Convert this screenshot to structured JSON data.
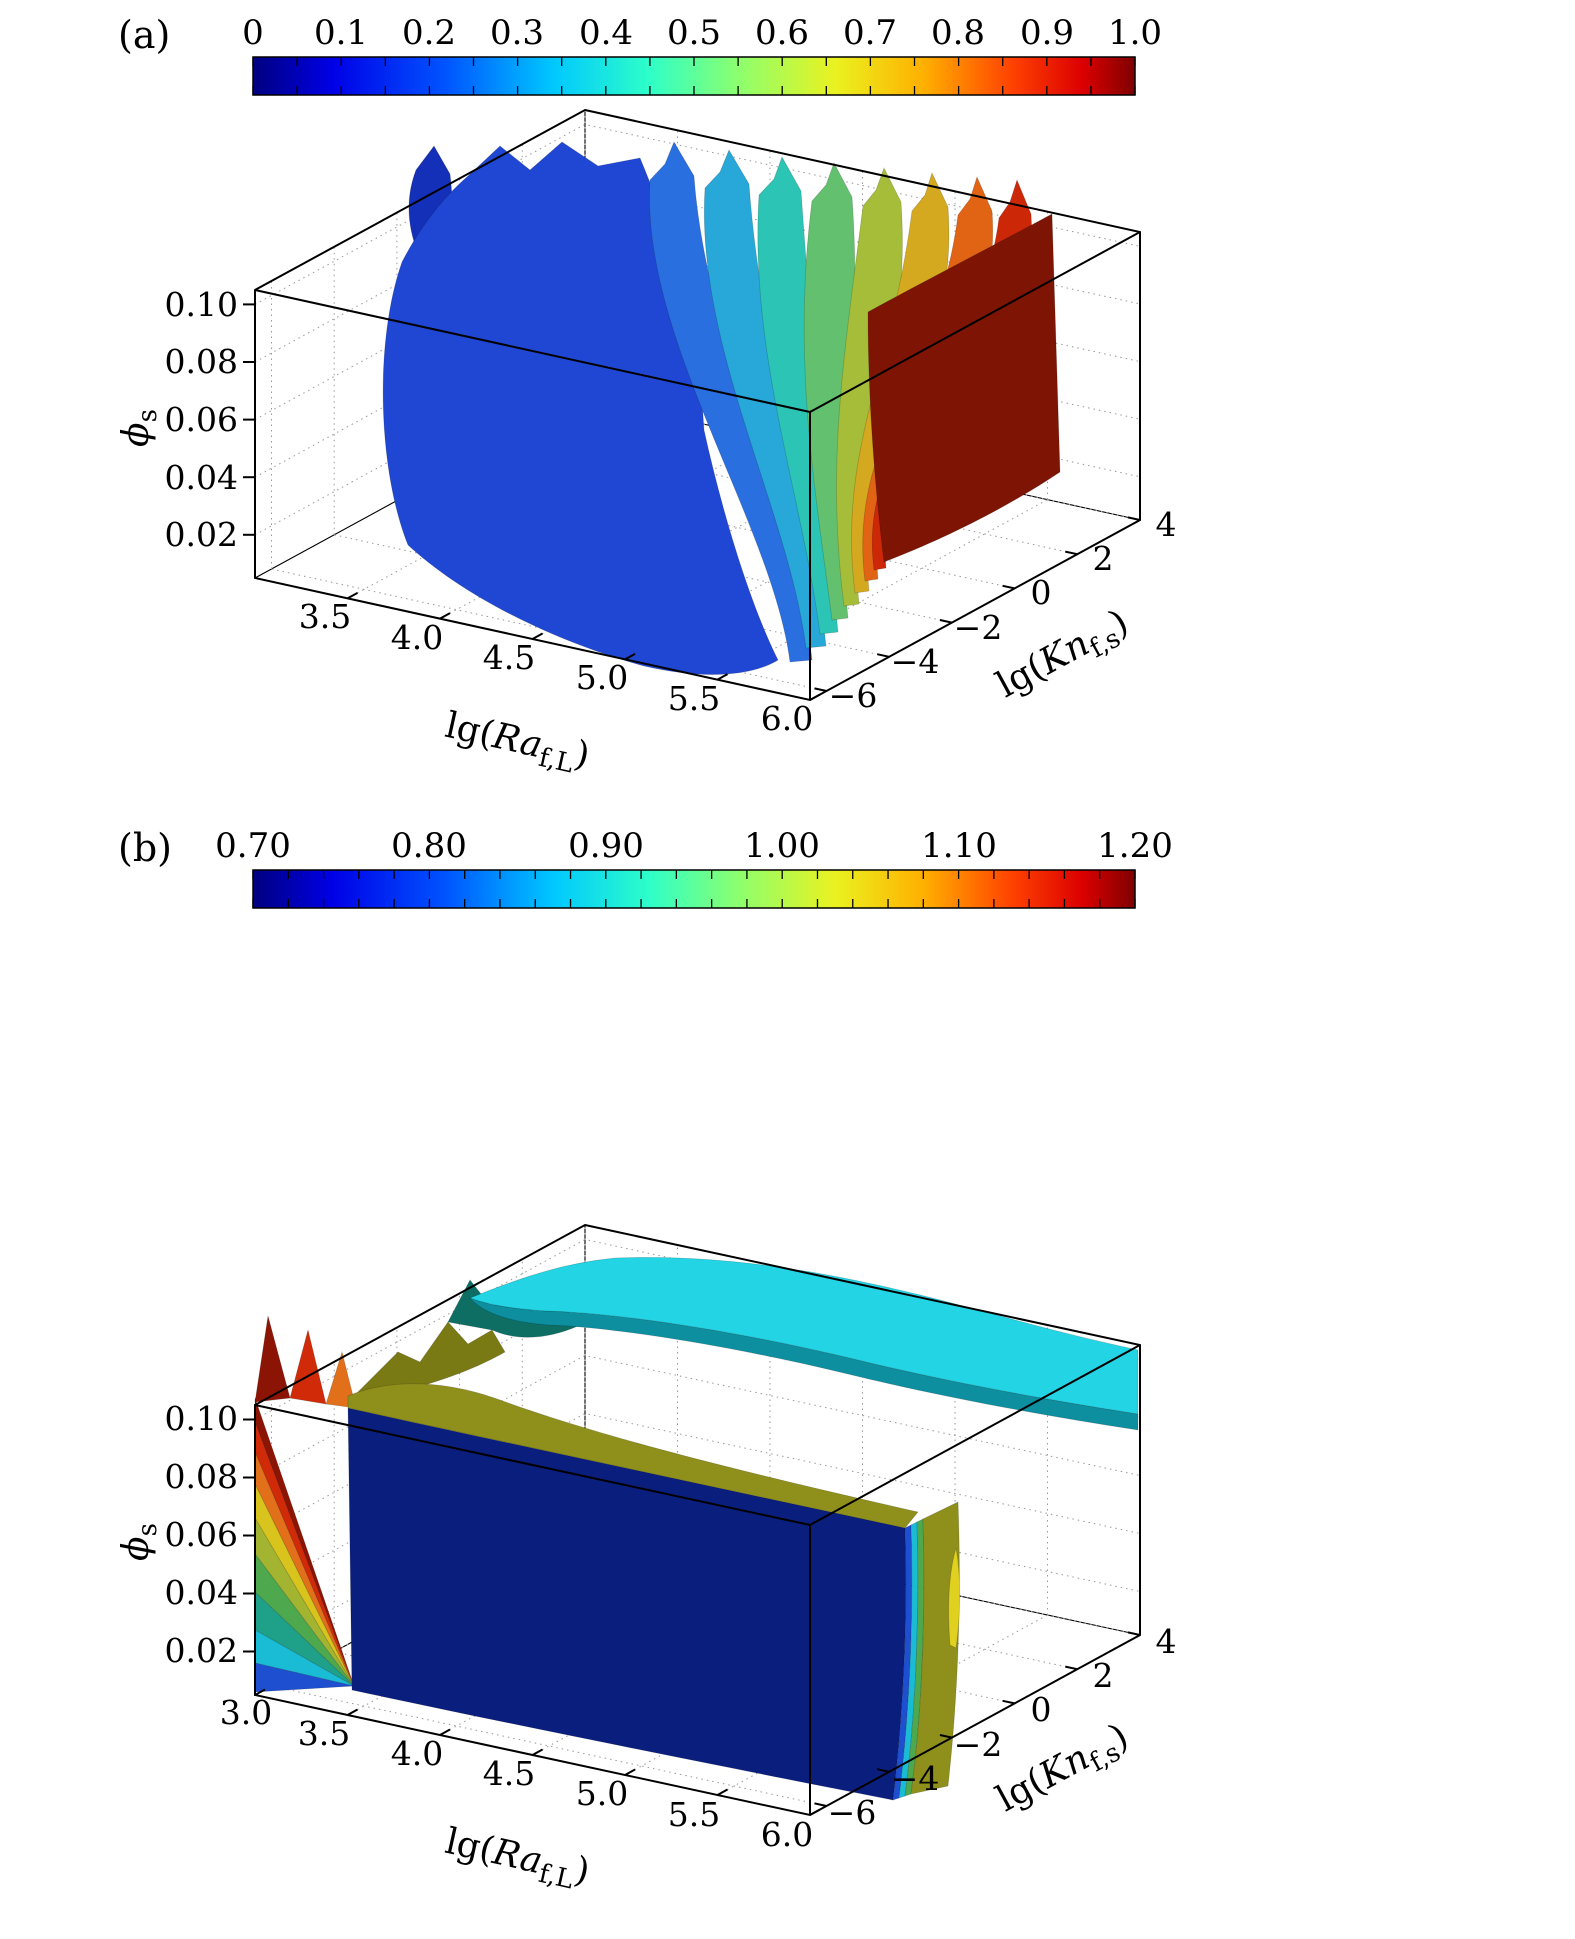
{
  "figure": {
    "panels": [
      {
        "tag": "(a)",
        "colorbar": {
          "tick_labels": [
            "0",
            "0.1",
            "0.2",
            "0.3",
            "0.4",
            "0.5",
            "0.6",
            "0.7",
            "0.8",
            "0.9",
            "1.0"
          ]
        },
        "y_axis": {
          "sym": "ϕ",
          "sub": "s",
          "ticks": [
            "0.10",
            "0.08",
            "0.06",
            "0.04",
            "0.02"
          ]
        },
        "x_axis": {
          "pre": "lg(",
          "sym": "Ra",
          "sub": "f,L",
          "post": ")",
          "ticks": [
            "3.5",
            "4.0",
            "4.5",
            "5.0",
            "5.5",
            "6.0"
          ]
        },
        "z_axis": {
          "pre": "lg(",
          "sym": "Kn",
          "sub": "f,s",
          "post": ")",
          "ticks": [
            "−6",
            "−4",
            "−2",
            "0",
            "2",
            "4"
          ]
        }
      },
      {
        "tag": "(b)",
        "colorbar": {
          "tick_labels": [
            "0.70",
            "0.80",
            "0.90",
            "1.00",
            "1.10",
            "1.20"
          ]
        },
        "y_axis": {
          "sym": "ϕ",
          "sub": "s",
          "ticks": [
            "0.10",
            "0.08",
            "0.06",
            "0.04",
            "0.02"
          ]
        },
        "x_axis": {
          "pre": "lg(",
          "sym": "Ra",
          "sub": "f,L",
          "post": ")",
          "ticks": [
            "3.0",
            "3.5",
            "4.0",
            "4.5",
            "5.0",
            "5.5",
            "6.0"
          ]
        },
        "z_axis": {
          "pre": "lg(",
          "sym": "Kn",
          "sub": "f,s",
          "post": ")",
          "ticks": [
            "−6",
            "−4",
            "−2",
            "0",
            "2",
            "4"
          ]
        }
      }
    ]
  },
  "chart_data": [
    {
      "type": "heatmap",
      "render": "3d-isosurface-contour",
      "panel": "(a)",
      "title": "",
      "xlabel": "lg(Ra_f,L)",
      "ylabel": "lg(Kn_f,s)",
      "zlabel": "phi_s",
      "x_axis": {
        "ticks": [
          3.5,
          4.0,
          4.5,
          5.0,
          5.5,
          6.0
        ],
        "range": [
          3.0,
          6.0
        ]
      },
      "kn_axis": {
        "ticks": [
          -6,
          -4,
          -2,
          0,
          2,
          4
        ],
        "range": [
          -6,
          4
        ]
      },
      "phi_axis": {
        "ticks": [
          0.02,
          0.04,
          0.06,
          0.08,
          0.1
        ],
        "range": [
          0.005,
          0.105
        ]
      },
      "colorbar": {
        "range": [
          0,
          1.0
        ],
        "ticks": [
          0,
          0.1,
          0.2,
          0.3,
          0.4,
          0.5,
          0.6,
          0.7,
          0.8,
          0.9,
          1.0
        ],
        "colormap": "jet",
        "gradient_stops": [
          {
            "offset": 0.0,
            "color": "#00007F"
          },
          {
            "offset": 0.09,
            "color": "#0000E6"
          },
          {
            "offset": 0.22,
            "color": "#0055FF"
          },
          {
            "offset": 0.34,
            "color": "#00C8FF"
          },
          {
            "offset": 0.45,
            "color": "#2EFFC8"
          },
          {
            "offset": 0.55,
            "color": "#8CFF6E"
          },
          {
            "offset": 0.66,
            "color": "#EAF220"
          },
          {
            "offset": 0.76,
            "color": "#FFB000"
          },
          {
            "offset": 0.86,
            "color": "#FF4200"
          },
          {
            "offset": 0.94,
            "color": "#DC0000"
          },
          {
            "offset": 1.0,
            "color": "#7F0000"
          }
        ]
      },
      "note": "Nested curtain-like isosurfaces from low values (blue, low lg(Ra)) to high values (dark red, high lg(Ra)); levels estimated from jet colorbar colors.",
      "surfaces": [
        {
          "level_est": 0.05,
          "color": "#1430B8"
        },
        {
          "level_est": 0.1,
          "color": "#2047D4"
        },
        {
          "level_est": 0.2,
          "color": "#2A6FE0"
        },
        {
          "level_est": 0.3,
          "color": "#27A8D8"
        },
        {
          "level_est": 0.4,
          "color": "#2CC4B4"
        },
        {
          "level_est": 0.5,
          "color": "#63C06E"
        },
        {
          "level_est": 0.6,
          "color": "#A6BD3A"
        },
        {
          "level_est": 0.7,
          "color": "#D4A81F"
        },
        {
          "level_est": 0.8,
          "color": "#E06414"
        },
        {
          "level_est": 0.9,
          "color": "#CC2808"
        },
        {
          "level_est": 0.97,
          "color": "#7E1403"
        }
      ]
    },
    {
      "type": "heatmap",
      "render": "3d-isosurface-contour",
      "panel": "(b)",
      "title": "",
      "xlabel": "lg(Ra_f,L)",
      "ylabel": "lg(Kn_f,s)",
      "zlabel": "phi_s",
      "x_axis": {
        "ticks": [
          3.0,
          3.5,
          4.0,
          4.5,
          5.0,
          5.5,
          6.0
        ],
        "range": [
          3.0,
          6.0
        ]
      },
      "kn_axis": {
        "ticks": [
          -6,
          -4,
          -2,
          0,
          2,
          4
        ],
        "range": [
          -6,
          4
        ]
      },
      "phi_axis": {
        "ticks": [
          0.02,
          0.04,
          0.06,
          0.08,
          0.1
        ],
        "range": [
          0.005,
          0.105
        ]
      },
      "colorbar": {
        "range": [
          0.7,
          1.2
        ],
        "ticks": [
          0.7,
          0.8,
          0.9,
          1.0,
          1.1,
          1.2
        ],
        "colormap": "jet"
      },
      "note": "Large dark-navy low-level block filling most of the domain, a cyan horizontal slab near the top, olive/dark-yellow bands along the block top and right side, and a red-to-blue fan of isosurface stripes at the low-lg(Ra) edge; levels estimated from jet colorbar colors.",
      "surfaces": [
        {
          "level_est": 0.72,
          "color": "#0A1E7E",
          "feature": "main low-value block"
        },
        {
          "level_est": 0.9,
          "color": "#22D4E4",
          "feature": "horizontal slab near top"
        },
        {
          "level_est": 0.92,
          "color": "#0D8FA0",
          "feature": "slab front edge"
        },
        {
          "level_est": 1.02,
          "color": "#8F8F1C",
          "feature": "olive band along block top"
        },
        {
          "level_est": 1.04,
          "color": "#7A7A14",
          "feature": "olive ridge spikes"
        },
        {
          "level_est": 0.94,
          "color": "#0E6E64",
          "feature": "teal spikes near top"
        },
        {
          "level_est": 1.18,
          "color": "#8C1404",
          "feature": "dark-red stripe, left fan"
        },
        {
          "level_est": 1.14,
          "color": "#D02A08",
          "feature": "red stripe, left fan"
        },
        {
          "level_est": 1.1,
          "color": "#E2701A",
          "feature": "orange stripe, left fan"
        },
        {
          "level_est": 1.06,
          "color": "#D8C41C",
          "feature": "yellow stripe, left fan"
        },
        {
          "level_est": 1.02,
          "color": "#A2B430",
          "feature": "yellow-green stripe, left fan"
        },
        {
          "level_est": 0.98,
          "color": "#4EA84E",
          "feature": "green stripe, left fan"
        },
        {
          "level_est": 0.94,
          "color": "#1EA188",
          "feature": "teal stripe, left fan"
        },
        {
          "level_est": 0.9,
          "color": "#19BCD4",
          "feature": "cyan stripe, left fan"
        },
        {
          "level_est": 0.82,
          "color": "#1E4FD0",
          "feature": "blue stripe, left fan"
        },
        {
          "level_est": 0.78,
          "color": "#1E4FD0",
          "feature": "blue strip right of block"
        },
        {
          "level_est": 0.86,
          "color": "#19BCD4",
          "feature": "cyan strip right of block"
        },
        {
          "level_est": 0.94,
          "color": "#4EA84E",
          "feature": "green strip right of block"
        },
        {
          "level_est": 1.02,
          "color": "#8F8F1C",
          "feature": "olive strip right of block"
        },
        {
          "level_est": 1.05,
          "color": "#E0D020",
          "feature": "yellow spike on right strip"
        }
      ]
    }
  ]
}
